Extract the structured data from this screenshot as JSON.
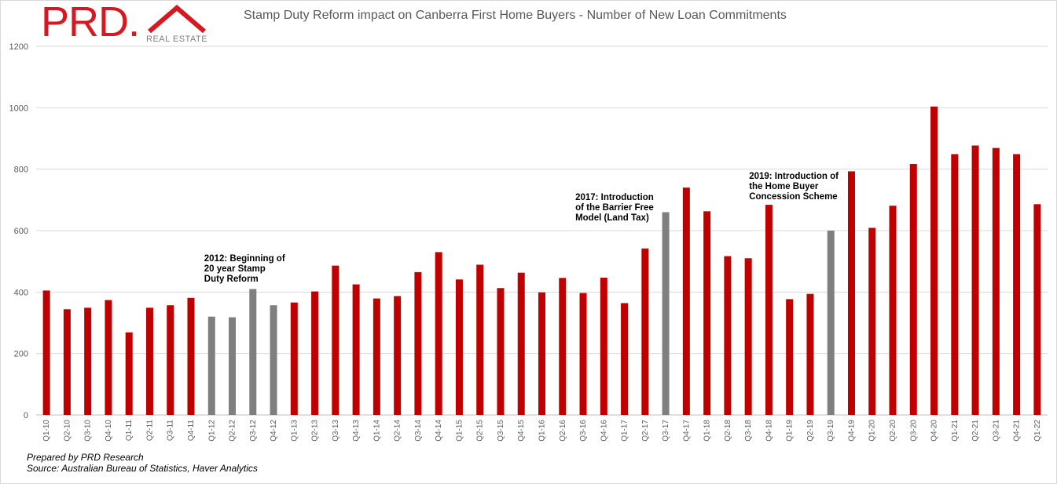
{
  "brand": {
    "logo_text": "PRD.",
    "logo_sub": "REAL ESTATE",
    "red": "#c00000",
    "grey": "#7f7f7f"
  },
  "chart_data": {
    "type": "bar",
    "title": "Stamp Duty Reform impact on Canberra First Home Buyers - Number of New Loan Commitments",
    "xlabel": "",
    "ylabel": "",
    "ylim": [
      0,
      1200
    ],
    "yticks": [
      0,
      200,
      400,
      600,
      800,
      1000,
      1200
    ],
    "grid": true,
    "categories": [
      "Q1-10",
      "Q2-10",
      "Q3-10",
      "Q4-10",
      "Q1-11",
      "Q2-11",
      "Q3-11",
      "Q4-11",
      "Q1-12",
      "Q2-12",
      "Q3-12",
      "Q4-12",
      "Q1-13",
      "Q2-13",
      "Q3-13",
      "Q4-13",
      "Q1-14",
      "Q2-14",
      "Q3-14",
      "Q4-14",
      "Q1-15",
      "Q2-15",
      "Q3-15",
      "Q4-15",
      "Q1-16",
      "Q2-16",
      "Q3-16",
      "Q4-16",
      "Q1-17",
      "Q2-17",
      "Q3-17",
      "Q4-17",
      "Q1-18",
      "Q2-18",
      "Q3-18",
      "Q4-18",
      "Q1-19",
      "Q2-19",
      "Q3-19",
      "Q4-19",
      "Q1-20",
      "Q2-20",
      "Q3-20",
      "Q4-20",
      "Q1-21",
      "Q2-21",
      "Q3-21",
      "Q4-21",
      "Q1-22"
    ],
    "values": [
      405,
      344,
      349,
      374,
      269,
      349,
      357,
      381,
      320,
      318,
      410,
      357,
      366,
      402,
      486,
      425,
      379,
      387,
      465,
      530,
      441,
      489,
      413,
      463,
      399,
      446,
      397,
      447,
      364,
      542,
      660,
      740,
      663,
      517,
      510,
      684,
      377,
      394,
      600,
      793,
      609,
      681,
      817,
      1004,
      849,
      877,
      869,
      849,
      686
    ],
    "highlight": [
      "Q1-12",
      "Q2-12",
      "Q3-12",
      "Q4-12",
      "Q3-17",
      "Q3-19"
    ],
    "annotations": [
      {
        "lines": [
          "2012: Beginning of",
          "20 year Stamp",
          "Duty Reform"
        ],
        "category": "Q3-12"
      },
      {
        "lines": [
          "2017: Introduction",
          "of the Barrier Free",
          "Model (Land Tax)"
        ],
        "category": "Q3-17"
      },
      {
        "lines": [
          "2019: Introduction of",
          "the Home Buyer",
          "Concession Scheme"
        ],
        "category": "Q3-19"
      }
    ]
  },
  "footer": {
    "prepared_by": "Prepared by PRD Research",
    "source": "Source: Australian Bureau of Statistics, Haver Analytics"
  }
}
